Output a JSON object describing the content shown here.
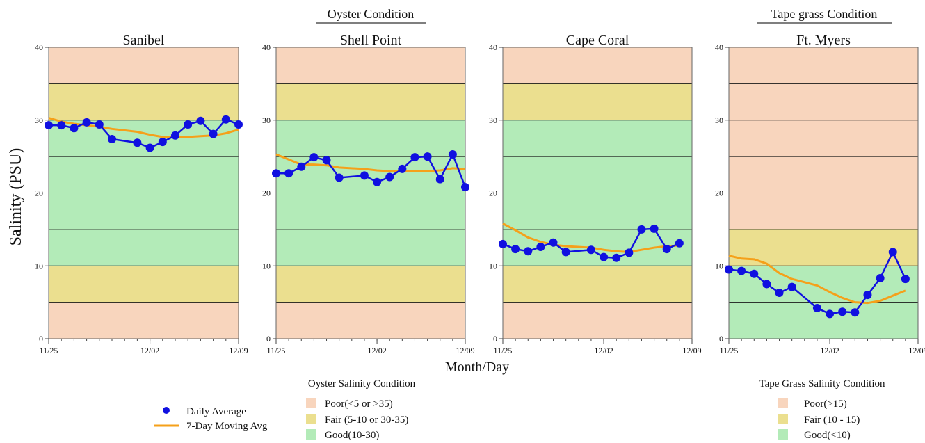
{
  "group_titles": {
    "oyster": "Oyster Condition",
    "tape_grass": "Tape grass Condition"
  },
  "axes": {
    "ylabel": "Salinity (PSU)",
    "xlabel": "Month/Day",
    "y_ticks": [
      "0",
      "10",
      "20",
      "30",
      "40"
    ],
    "x_ticks": [
      "11/25",
      "12/02",
      "12/09"
    ]
  },
  "legend": {
    "daily_label": "Daily Average",
    "moving_label": "7-Day Moving Avg",
    "oyster_title": "Oyster Salinity Condition",
    "oyster_items": [
      "Poor(<5 or >35)",
      "Fair (5-10 or 30-35)",
      "Good(10-30)"
    ],
    "tape_title": "Tape Grass Salinity Condition",
    "tape_items": [
      "Poor(>15)",
      "Fair (10 - 15)",
      "Good(<10)"
    ]
  },
  "colors": {
    "poor": "#f8d5bd",
    "fair": "#ebdf8f",
    "good": "#b3ebb8",
    "daily": "#1010e0",
    "moving": "#f5a01a"
  },
  "chart_data": [
    {
      "type": "line",
      "title": "Sanibel",
      "ylim": [
        0,
        40
      ],
      "xlim": [
        "11/25",
        "12/09"
      ],
      "bands": [
        {
          "from": 0,
          "to": 5,
          "condition": "poor"
        },
        {
          "from": 5,
          "to": 10,
          "condition": "fair"
        },
        {
          "from": 10,
          "to": 30,
          "condition": "good"
        },
        {
          "from": 30,
          "to": 35,
          "condition": "fair"
        },
        {
          "from": 35,
          "to": 40,
          "condition": "poor"
        }
      ],
      "series": [
        {
          "name": "Daily Average",
          "x": [
            "11/25",
            "11/26",
            "11/27",
            "11/28",
            "11/29",
            "11/30",
            "12/01",
            "12/02",
            "12/03",
            "12/04",
            "12/05",
            "12/06",
            "12/07",
            "12/08",
            "12/09"
          ],
          "values": [
            29.3,
            29.3,
            28.9,
            29.7,
            29.4,
            27.4,
            26.9,
            26.2,
            27.0,
            27.9,
            29.4,
            29.9,
            28.1,
            30.1,
            29.4
          ]
        },
        {
          "name": "7-Day Moving Avg",
          "x": [
            "11/25",
            "11/26",
            "11/27",
            "11/28",
            "11/29",
            "11/30",
            "12/01",
            "12/02",
            "12/03",
            "12/04",
            "12/05",
            "12/06",
            "12/07",
            "12/08",
            "12/09"
          ],
          "values": [
            30.3,
            29.8,
            29.5,
            29.3,
            29.1,
            28.8,
            28.4,
            28.0,
            27.7,
            27.7,
            27.7,
            27.8,
            27.9,
            28.2,
            28.7
          ]
        }
      ]
    },
    {
      "type": "line",
      "title": "Shell Point",
      "ylim": [
        0,
        40
      ],
      "xlim": [
        "11/25",
        "12/09"
      ],
      "bands": [
        {
          "from": 0,
          "to": 5,
          "condition": "poor"
        },
        {
          "from": 5,
          "to": 10,
          "condition": "fair"
        },
        {
          "from": 10,
          "to": 30,
          "condition": "good"
        },
        {
          "from": 30,
          "to": 35,
          "condition": "fair"
        },
        {
          "from": 35,
          "to": 40,
          "condition": "poor"
        }
      ],
      "series": [
        {
          "name": "Daily Average",
          "x": [
            "11/25",
            "11/26",
            "11/27",
            "11/28",
            "11/29",
            "11/30",
            "12/01",
            "12/02",
            "12/03",
            "12/04",
            "12/05",
            "12/06",
            "12/07",
            "12/08",
            "12/09"
          ],
          "values": [
            22.7,
            22.7,
            23.6,
            24.9,
            24.5,
            22.1,
            22.4,
            21.5,
            22.2,
            23.3,
            24.9,
            25.0,
            21.9,
            25.3,
            20.8
          ]
        },
        {
          "name": "7-Day Moving Avg",
          "x": [
            "11/25",
            "11/26",
            "11/27",
            "11/28",
            "11/29",
            "11/30",
            "12/01",
            "12/02",
            "12/03",
            "12/04",
            "12/05",
            "12/06",
            "12/07",
            "12/08",
            "12/09"
          ],
          "values": [
            25.3,
            24.6,
            23.9,
            23.9,
            23.8,
            23.5,
            23.3,
            23.1,
            23.0,
            23.0,
            23.0,
            23.0,
            23.1,
            23.4,
            23.3
          ]
        }
      ]
    },
    {
      "type": "line",
      "title": "Cape Coral",
      "ylim": [
        0,
        40
      ],
      "xlim": [
        "11/25",
        "12/09"
      ],
      "bands": [
        {
          "from": 0,
          "to": 5,
          "condition": "poor"
        },
        {
          "from": 5,
          "to": 10,
          "condition": "fair"
        },
        {
          "from": 10,
          "to": 30,
          "condition": "good"
        },
        {
          "from": 30,
          "to": 35,
          "condition": "fair"
        },
        {
          "from": 35,
          "to": 40,
          "condition": "poor"
        }
      ],
      "series": [
        {
          "name": "Daily Average",
          "x": [
            "11/25",
            "11/26",
            "11/27",
            "11/28",
            "11/29",
            "11/30",
            "12/01",
            "12/02",
            "12/03",
            "12/04",
            "12/05",
            "12/06",
            "12/07",
            "12/08"
          ],
          "values": [
            13.0,
            12.3,
            12.0,
            12.6,
            13.2,
            11.9,
            12.2,
            11.2,
            11.1,
            11.8,
            15.0,
            15.1,
            12.3,
            13.1
          ]
        },
        {
          "name": "7-Day Moving Avg",
          "x": [
            "11/25",
            "11/26",
            "11/27",
            "11/28",
            "11/29",
            "11/30",
            "12/01",
            "12/02",
            "12/03",
            "12/04",
            "12/05",
            "12/06",
            "12/07",
            "12/08"
          ],
          "values": [
            15.8,
            14.9,
            13.9,
            13.3,
            12.9,
            12.7,
            12.5,
            12.2,
            12.0,
            11.9,
            12.2,
            12.5,
            12.7,
            12.8
          ]
        }
      ]
    },
    {
      "type": "line",
      "title": "Ft. Myers",
      "ylim": [
        0,
        40
      ],
      "xlim": [
        "11/25",
        "12/09"
      ],
      "bands": [
        {
          "from": 0,
          "to": 10,
          "condition": "good"
        },
        {
          "from": 10,
          "to": 15,
          "condition": "fair"
        },
        {
          "from": 15,
          "to": 40,
          "condition": "poor"
        }
      ],
      "series": [
        {
          "name": "Daily Average",
          "x": [
            "11/25",
            "11/26",
            "11/27",
            "11/28",
            "11/29",
            "11/30",
            "12/01",
            "12/02",
            "12/03",
            "12/04",
            "12/05",
            "12/06",
            "12/07",
            "12/08"
          ],
          "values": [
            9.5,
            9.3,
            8.9,
            7.5,
            6.3,
            7.1,
            4.2,
            3.4,
            3.7,
            3.6,
            6.0,
            8.3,
            11.9,
            8.2
          ]
        },
        {
          "name": "7-Day Moving Avg",
          "x": [
            "11/25",
            "11/26",
            "11/27",
            "11/28",
            "11/29",
            "11/30",
            "12/01",
            "12/02",
            "12/03",
            "12/04",
            "12/05",
            "12/06",
            "12/07",
            "12/08"
          ],
          "values": [
            11.4,
            11.0,
            10.9,
            10.3,
            9.0,
            8.2,
            7.3,
            6.4,
            5.6,
            5.0,
            4.9,
            5.2,
            5.9,
            6.6
          ]
        }
      ]
    }
  ]
}
